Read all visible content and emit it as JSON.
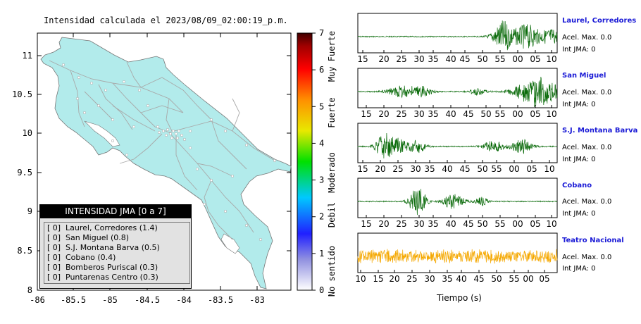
{
  "title": "Intensidad calculada el 2023/08/09_02:00:19_p.m.",
  "map": {
    "land_color": "#b2ebeb",
    "x_ticks": [
      "-86",
      "-85.5",
      "-85",
      "-84.5",
      "-84",
      "-83.5",
      "-83"
    ],
    "y_ticks": [
      "11",
      "10.5",
      "10",
      "9.5",
      "9",
      "8.5",
      "8"
    ]
  },
  "colorbar": {
    "ticks": [
      "7",
      "6",
      "5",
      "4",
      "3",
      "2",
      "1",
      "0"
    ],
    "labels": [
      "Muy Fuerte",
      "Fuerte",
      "Moderado",
      "Debil",
      "No sentido"
    ]
  },
  "legend": {
    "header": "INTENSIDAD JMA [0 a 7]",
    "rows": [
      {
        "bracket": "[ 0]",
        "text": "Laurel, Corredores (1.4)"
      },
      {
        "bracket": "[ 0]",
        "text": "San Miguel (0.8)"
      },
      {
        "bracket": "[ 0]",
        "text": "S.J. Montana Barva (0.5)"
      },
      {
        "bracket": "[ 0]",
        "text": "Cobano (0.4)"
      },
      {
        "bracket": "[ 0]",
        "text": "Bomberos Puriscal (0.3)"
      },
      {
        "bracket": "[ 0]",
        "text": "Puntarenas Centro (0.3)"
      }
    ]
  },
  "stations": [
    {
      "name": "Laurel, Corredores",
      "acel": "Acel. Max. 0.0",
      "int": "Int JMA: 0",
      "color": "#0b6b0b",
      "ticks": [
        "15",
        "20",
        "25",
        "30",
        "35",
        "40",
        "45",
        "50",
        "55",
        "00",
        "05",
        "10"
      ]
    },
    {
      "name": "San Miguel",
      "acel": "Acel. Max. 0.0",
      "int": "Int JMA: 0",
      "color": "#0b6b0b",
      "ticks": [
        "15",
        "20",
        "25",
        "30",
        "35",
        "40",
        "45",
        "50",
        "55",
        "00",
        "05",
        "10"
      ]
    },
    {
      "name": "S.J. Montana Barva",
      "acel": "Acel. Max. 0.0",
      "int": "Int JMA: 0",
      "color": "#0b6b0b",
      "ticks": [
        "15",
        "20",
        "25",
        "30",
        "35",
        "40",
        "45",
        "50",
        "55",
        "00",
        "05",
        "10"
      ]
    },
    {
      "name": "Cobano",
      "acel": "Acel. Max. 0.0",
      "int": "Int JMA: 0",
      "color": "#0b6b0b",
      "ticks": [
        "15",
        "20",
        "25",
        "30",
        "35",
        "40",
        "45",
        "50",
        "55",
        "00",
        "05",
        "10"
      ]
    },
    {
      "name": "Teatro Nacional",
      "acel": "Acel. Max. 0.0",
      "int": "Int JMA: 0",
      "color": "#f5a800",
      "ticks": [
        "10",
        "15",
        "20",
        "25",
        "30",
        "35",
        "40",
        "45",
        "50",
        "55",
        "00",
        "05"
      ]
    }
  ],
  "xlabel": "Tiempo (s)",
  "chart_data": [
    {
      "type": "map",
      "title": "Intensidad calculada el 2023/08/09_02:00:19_p.m.",
      "xlim": [
        -86,
        -82.5
      ],
      "ylim": [
        8,
        11.3
      ],
      "colorbar_range": [
        0,
        7
      ],
      "stations_intensity": [
        {
          "name": "Laurel, Corredores",
          "jma": 0,
          "value": 1.4
        },
        {
          "name": "San Miguel",
          "jma": 0,
          "value": 0.8
        },
        {
          "name": "S.J. Montana Barva",
          "jma": 0,
          "value": 0.5
        },
        {
          "name": "Cobano",
          "jma": 0,
          "value": 0.4
        },
        {
          "name": "Bomberos Puriscal",
          "jma": 0,
          "value": 0.3
        },
        {
          "name": "Puntarenas Centro",
          "jma": 0,
          "value": 0.3
        }
      ]
    },
    {
      "type": "line",
      "xlabel": "Tiempo (s)",
      "series": [
        {
          "name": "Laurel, Corredores",
          "acel_max": 0.0,
          "int_jma": 0
        },
        {
          "name": "San Miguel",
          "acel_max": 0.0,
          "int_jma": 0
        },
        {
          "name": "S.J. Montana Barva",
          "acel_max": 0.0,
          "int_jma": 0
        },
        {
          "name": "Cobano",
          "acel_max": 0.0,
          "int_jma": 0
        },
        {
          "name": "Teatro Nacional",
          "acel_max": 0.0,
          "int_jma": 0
        }
      ]
    }
  ]
}
